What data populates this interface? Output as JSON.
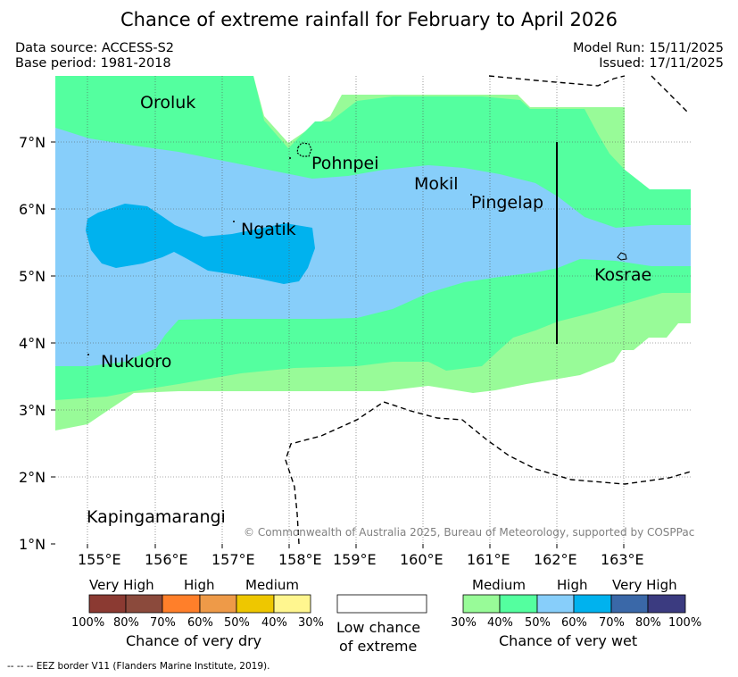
{
  "header": {
    "title": "Chance of extreme rainfall for February to April 2026",
    "data_source": "Data source: ACCESS-S2",
    "base_period": "Base period: 1981-2018",
    "model_run": "Model Run: 15/11/2025",
    "issued": "Issued: 17/11/2025"
  },
  "map": {
    "x_ticks": [
      "155°E",
      "156°E",
      "157°E",
      "158°E",
      "159°E",
      "160°E",
      "161°E",
      "162°E",
      "163°E"
    ],
    "y_ticks": [
      "7°N",
      "6°N",
      "5°N",
      "4°N",
      "3°N",
      "2°N",
      "1°N"
    ],
    "places": {
      "oroluk": "Oroluk",
      "pohnpei": "Pohnpei",
      "mokil": "Mokil",
      "pingelap": "Pingelap",
      "ngatik": "Ngatik",
      "kosrae": "Kosrae",
      "nukuoro": "Nukuoro",
      "kapingamarangi": "Kapingamarangi"
    },
    "copyright": "© Commonwealth of Australia 2025, Bureau of Meteorology, supported by COSPPac"
  },
  "legend": {
    "dry": {
      "headers": [
        "Very High",
        "High",
        "Medium"
      ],
      "colors": [
        "#8b3a32",
        "#8b4a3c",
        "#ff7f2a",
        "#ee9a48",
        "#eec700",
        "#fff68f"
      ],
      "percents": [
        "100%",
        "80%",
        "70%",
        "60%",
        "50%",
        "40%",
        "30%"
      ],
      "caption": "Chance of very dry"
    },
    "low": {
      "line1": "Low chance",
      "line2": "of extreme"
    },
    "wet": {
      "headers": [
        "Medium",
        "High",
        "Very High"
      ],
      "colors": [
        "#98fb98",
        "#54ff9f",
        "#87cefa",
        "#00b2ee",
        "#3a68a8",
        "#3b3b80"
      ],
      "percents": [
        "30%",
        "40%",
        "50%",
        "60%",
        "70%",
        "80%",
        "100%"
      ],
      "caption": "Chance of very wet"
    }
  },
  "footnote": "--  --  -- EEZ border V11 (Flanders Marine Institute, 2019)."
}
